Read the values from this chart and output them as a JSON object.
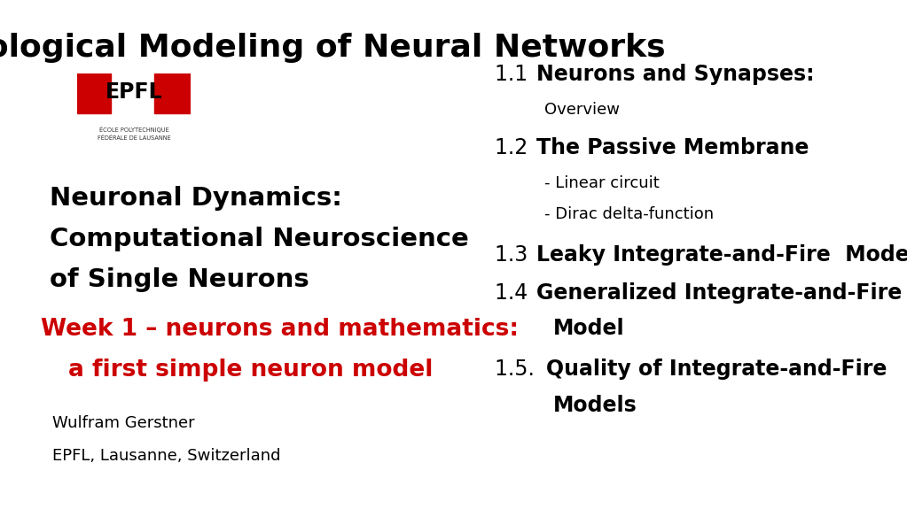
{
  "title": "Biological Modeling of Neural Networks",
  "background_color": "#ffffff",
  "title_color": "#000000",
  "title_fontsize": 26,
  "left_panel": {
    "book_title_line1": "Neuronal Dynamics:",
    "book_title_line2": "Computational Neuroscience",
    "book_title_line3": "of Single Neurons",
    "book_title_color": "#000000",
    "book_title_fontsize": 21,
    "week_line1": "Week 1 – neurons and mathematics:",
    "week_line2": "a first simple neuron model",
    "week_color": "#cc0000",
    "week_fontsize": 19,
    "author": "Wulfram Gerstner",
    "affiliation": "EPFL, Lausanne, Switzerland",
    "author_fontsize": 13
  },
  "right_panel": {
    "items": [
      {
        "number": "1.1 ",
        "bold_text": "Neurons and Synapses:",
        "sub": false,
        "continuation": false
      },
      {
        "number": "",
        "bold_text": "Overview",
        "sub": true,
        "continuation": false,
        "normal": true
      },
      {
        "number": "1.2 ",
        "bold_text": "The Passive Membrane",
        "sub": false,
        "continuation": false
      },
      {
        "number": "",
        "bold_text": "- Linear circuit",
        "sub": true,
        "continuation": false,
        "normal": true
      },
      {
        "number": "",
        "bold_text": "- Dirac delta-function",
        "sub": true,
        "continuation": false,
        "normal": true
      },
      {
        "number": "1.3 ",
        "bold_text": "Leaky Integrate-and-Fire  Model",
        "sub": false,
        "continuation": false
      },
      {
        "number": "1.4 ",
        "bold_text": "Generalized Integrate-and-Fire",
        "sub": false,
        "continuation": false
      },
      {
        "number": "",
        "bold_text": "Model",
        "sub": false,
        "continuation": true
      },
      {
        "number": "1.5. ",
        "bold_text": "Quality of Integrate-and-Fire",
        "sub": false,
        "continuation": false
      },
      {
        "number": "",
        "bold_text": "Models",
        "sub": false,
        "continuation": true
      }
    ],
    "fontsize": 17,
    "sub_fontsize": 13,
    "text_color": "#000000"
  }
}
